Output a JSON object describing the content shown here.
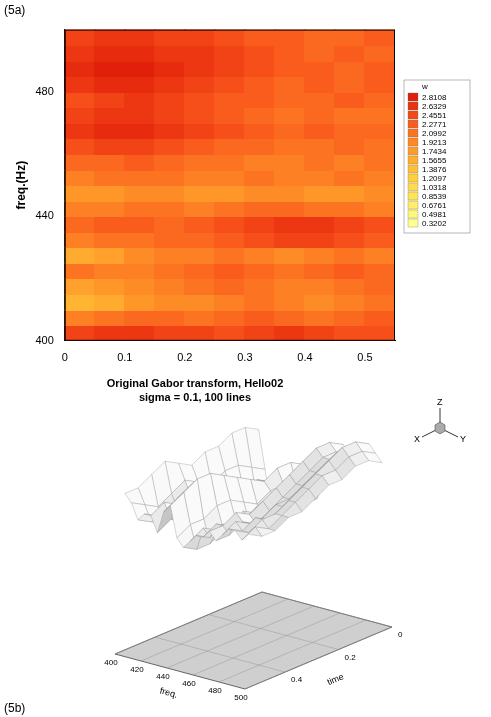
{
  "panel_labels": [
    "(5a)",
    "(5b)"
  ],
  "chart_data": [
    {
      "type": "heatmap",
      "y_label": "freq.(Hz)",
      "xlim": [
        0,
        0.55
      ],
      "xticks": [
        0,
        0.1,
        0.2,
        0.3,
        0.4,
        0.5
      ],
      "ylim": [
        400,
        500
      ],
      "yticks": [
        400,
        440,
        480
      ],
      "grid": false,
      "x": [
        0.025,
        0.075,
        0.125,
        0.175,
        0.225,
        0.275,
        0.325,
        0.375,
        0.425,
        0.475,
        0.525
      ],
      "y": [
        402.5,
        407.5,
        412.5,
        417.5,
        422.5,
        427.5,
        432.5,
        437.5,
        442.5,
        447.5,
        452.5,
        457.5,
        462.5,
        467.5,
        472.5,
        477.5,
        482.5,
        487.5,
        492.5,
        497.5
      ],
      "cells": [
        [
          2.5,
          2.6,
          2.6,
          2.5,
          2.5,
          2.4,
          2.5,
          2.6,
          2.5,
          2.4,
          2.4
        ],
        [
          2.0,
          2.1,
          2.2,
          2.2,
          2.1,
          2.2,
          2.3,
          2.2,
          2.1,
          2.2,
          2.3
        ],
        [
          1.5,
          1.6,
          1.8,
          1.9,
          1.9,
          2.0,
          2.1,
          2.0,
          1.9,
          2.0,
          2.1
        ],
        [
          1.7,
          1.8,
          1.9,
          2.0,
          2.1,
          2.2,
          2.1,
          2.0,
          2.0,
          2.1,
          2.2
        ],
        [
          2.1,
          2.0,
          2.0,
          2.1,
          2.2,
          2.3,
          2.2,
          2.1,
          2.2,
          2.3,
          2.2
        ],
        [
          1.6,
          1.7,
          1.9,
          2.0,
          2.0,
          2.1,
          2.0,
          1.9,
          2.0,
          2.1,
          2.0
        ],
        [
          2.0,
          2.1,
          2.1,
          2.2,
          2.2,
          2.3,
          2.4,
          2.5,
          2.5,
          2.4,
          2.3
        ],
        [
          2.2,
          2.3,
          2.3,
          2.2,
          2.3,
          2.4,
          2.5,
          2.6,
          2.6,
          2.5,
          2.4
        ],
        [
          2.0,
          2.0,
          2.1,
          2.1,
          2.0,
          2.1,
          2.2,
          2.2,
          2.1,
          2.1,
          2.0
        ],
        [
          1.8,
          1.8,
          1.9,
          1.9,
          1.8,
          1.8,
          1.9,
          1.9,
          1.8,
          1.8,
          1.9
        ],
        [
          2.0,
          2.1,
          2.1,
          2.1,
          2.0,
          2.0,
          2.1,
          2.0,
          2.0,
          2.1,
          2.0
        ],
        [
          2.2,
          2.2,
          2.3,
          2.2,
          2.1,
          2.1,
          2.0,
          2.0,
          2.1,
          2.0,
          2.1
        ],
        [
          2.4,
          2.5,
          2.5,
          2.4,
          2.3,
          2.2,
          2.2,
          2.1,
          2.1,
          2.2,
          2.1
        ],
        [
          2.6,
          2.7,
          2.7,
          2.6,
          2.5,
          2.4,
          2.3,
          2.2,
          2.3,
          2.2,
          2.2
        ],
        [
          2.5,
          2.6,
          2.6,
          2.5,
          2.4,
          2.3,
          2.2,
          2.1,
          2.2,
          2.1,
          2.1
        ],
        [
          2.4,
          2.5,
          2.6,
          2.5,
          2.4,
          2.3,
          2.3,
          2.2,
          2.2,
          2.3,
          2.2
        ],
        [
          2.6,
          2.7,
          2.7,
          2.6,
          2.5,
          2.4,
          2.3,
          2.2,
          2.3,
          2.2,
          2.3
        ],
        [
          2.7,
          2.8,
          2.8,
          2.7,
          2.6,
          2.5,
          2.4,
          2.3,
          2.3,
          2.2,
          2.3
        ],
        [
          2.6,
          2.7,
          2.7,
          2.6,
          2.6,
          2.5,
          2.4,
          2.3,
          2.2,
          2.3,
          2.2
        ],
        [
          2.5,
          2.6,
          2.6,
          2.5,
          2.5,
          2.4,
          2.3,
          2.3,
          2.2,
          2.2,
          2.3
        ]
      ],
      "colorbar": {
        "label": "w",
        "range": [
          0.3202,
          2.8108
        ],
        "ticks": [
          2.8108,
          2.6329,
          2.4551,
          2.2771,
          2.0992,
          1.9213,
          1.7434,
          1.5655,
          1.3876,
          1.2097,
          1.0318,
          0.8539,
          0.6761,
          0.4981,
          0.3202
        ]
      }
    },
    {
      "type": "surface",
      "title": "Original Gabor transform, Hello02",
      "subtitle": "sigma = 0.1, 100 lines",
      "x_label": "freq.",
      "y_label": "time",
      "xlim": [
        400,
        500
      ],
      "xticks": [
        400,
        420,
        440,
        460,
        480,
        500
      ],
      "ylim": [
        0,
        0.55
      ],
      "yticks": [
        0,
        0.2,
        0.4
      ],
      "zlim": [
        0.3202,
        2.8108
      ],
      "triad_labels": [
        "X",
        "Y",
        "Z"
      ],
      "x": [
        402.5,
        407.5,
        412.5,
        417.5,
        422.5,
        427.5,
        432.5,
        437.5,
        442.5,
        447.5,
        452.5,
        457.5,
        462.5,
        467.5,
        472.5,
        477.5,
        482.5,
        487.5,
        492.5,
        497.5
      ],
      "y": [
        0.025,
        0.075,
        0.125,
        0.175,
        0.225,
        0.275,
        0.325,
        0.375,
        0.425,
        0.475,
        0.525
      ],
      "cells": [
        [
          2.5,
          2.6,
          2.6,
          2.5,
          2.5,
          2.4,
          2.5,
          2.6,
          2.5,
          2.4,
          2.4
        ],
        [
          2.0,
          2.1,
          2.2,
          2.2,
          2.1,
          2.2,
          2.3,
          2.2,
          2.1,
          2.2,
          2.3
        ],
        [
          1.5,
          1.6,
          1.8,
          1.9,
          1.9,
          2.0,
          2.1,
          2.0,
          1.9,
          2.0,
          2.1
        ],
        [
          1.7,
          1.8,
          1.9,
          2.0,
          2.1,
          2.2,
          2.1,
          2.0,
          2.0,
          2.1,
          2.2
        ],
        [
          2.1,
          2.0,
          2.0,
          2.1,
          2.2,
          2.3,
          2.2,
          2.1,
          2.2,
          2.3,
          2.2
        ],
        [
          1.6,
          1.7,
          1.9,
          2.0,
          2.0,
          2.1,
          2.0,
          1.9,
          2.0,
          2.1,
          2.0
        ],
        [
          2.0,
          2.1,
          2.1,
          2.2,
          2.2,
          2.3,
          2.4,
          2.5,
          2.5,
          2.4,
          2.3
        ],
        [
          2.2,
          2.3,
          2.3,
          2.2,
          2.3,
          2.4,
          2.5,
          2.6,
          2.6,
          2.5,
          2.4
        ],
        [
          2.0,
          2.0,
          2.1,
          2.1,
          2.0,
          2.1,
          2.2,
          2.2,
          2.1,
          2.1,
          2.0
        ],
        [
          1.8,
          1.8,
          1.9,
          1.9,
          1.8,
          1.8,
          1.9,
          1.9,
          1.8,
          1.8,
          1.9
        ],
        [
          2.0,
          2.1,
          2.1,
          2.1,
          2.0,
          2.0,
          2.1,
          2.0,
          2.0,
          2.1,
          2.0
        ],
        [
          2.2,
          2.2,
          2.3,
          2.2,
          2.1,
          2.1,
          2.0,
          2.0,
          2.1,
          2.0,
          2.1
        ],
        [
          2.4,
          2.5,
          2.5,
          2.4,
          2.3,
          2.2,
          2.2,
          2.1,
          2.1,
          2.2,
          2.1
        ],
        [
          2.6,
          2.7,
          2.7,
          2.6,
          2.5,
          2.4,
          2.3,
          2.2,
          2.3,
          2.2,
          2.2
        ],
        [
          2.5,
          2.6,
          2.6,
          2.5,
          2.4,
          2.3,
          2.2,
          2.1,
          2.2,
          2.1,
          2.1
        ],
        [
          2.4,
          2.5,
          2.6,
          2.5,
          2.4,
          2.3,
          2.3,
          2.2,
          2.2,
          2.3,
          2.2
        ],
        [
          2.6,
          2.7,
          2.7,
          2.6,
          2.5,
          2.4,
          2.3,
          2.2,
          2.3,
          2.2,
          2.3
        ],
        [
          2.7,
          2.8,
          2.8,
          2.7,
          2.6,
          2.5,
          2.4,
          2.3,
          2.3,
          2.2,
          2.3
        ],
        [
          2.6,
          2.7,
          2.7,
          2.6,
          2.6,
          2.5,
          2.4,
          2.3,
          2.2,
          2.3,
          2.2
        ],
        [
          2.5,
          2.6,
          2.6,
          2.5,
          2.5,
          2.4,
          2.3,
          2.3,
          2.2,
          2.2,
          2.3
        ]
      ]
    }
  ]
}
